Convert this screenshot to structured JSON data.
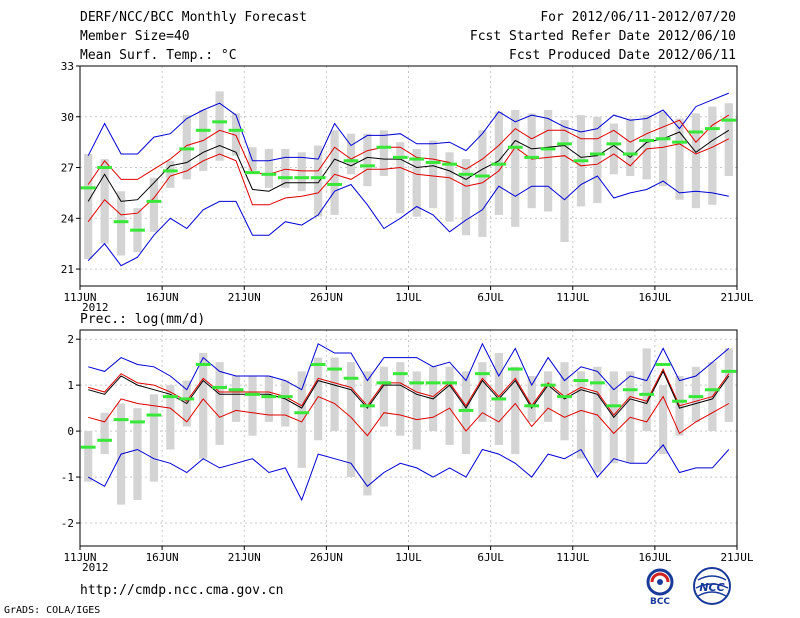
{
  "header": {
    "left": [
      "DERF/NCC/BCC Monthly Forecast",
      "Member Size=40",
      "Mean Surf. Temp.: °C"
    ],
    "right": [
      "For 2012/06/11-2012/07/20",
      "Fcst Started Refer Date 2012/06/10",
      "Fcst Produced Date 2012/06/11"
    ]
  },
  "footer": {
    "url": "http://cmdp.ncc.cma.gov.cn",
    "credit": "GrADS: COLA/IGES"
  },
  "logos": {
    "bcc": "BCC",
    "ncc": "NCC"
  },
  "colors": {
    "band": "#d4d4d4",
    "median": "#38e838",
    "mean": "#000000",
    "inner": "#e00000",
    "outer": "#0000d8",
    "grid": "#c8c8c8"
  },
  "chart_data": [
    {
      "type": "box-spread",
      "title": "Mean Surf. Temp.",
      "ylabel": "Mean Surf. Temp.: °C",
      "year_label": "2012",
      "ylim": [
        20,
        33
      ],
      "yticks": [
        21,
        24,
        27,
        30,
        33
      ],
      "x_days": 40,
      "xticks": [
        {
          "day": 0,
          "label": "11JUN"
        },
        {
          "day": 5,
          "label": "16JUN"
        },
        {
          "day": 10,
          "label": "21JUN"
        },
        {
          "day": 15,
          "label": "26JUN"
        },
        {
          "day": 20,
          "label": "1JUL"
        },
        {
          "day": 25,
          "label": "6JUL"
        },
        {
          "day": 30,
          "label": "11JUL"
        },
        {
          "day": 35,
          "label": "16JUL"
        },
        {
          "day": 40,
          "label": "21JUL"
        }
      ],
      "box_low": [
        21.6,
        22.5,
        21.8,
        22.0,
        23.2,
        25.8,
        26.3,
        26.8,
        27.4,
        27.7,
        26.8,
        25.8,
        25.8,
        25.6,
        24.1,
        24.2,
        26.6,
        25.9,
        26.5,
        24.3,
        24.1,
        24.6,
        23.8,
        23.0,
        22.9,
        24.2,
        23.5,
        24.6,
        24.4,
        22.6,
        24.7,
        24.9,
        26.6,
        26.5,
        26.3,
        25.9,
        25.1,
        24.6,
        24.8,
        26.5
      ],
      "box_high": [
        27.8,
        27.5,
        25.6,
        24.6,
        26.4,
        27.4,
        30.1,
        30.4,
        31.5,
        30.2,
        28.2,
        28.1,
        28.1,
        27.9,
        28.3,
        29.2,
        29.0,
        29.0,
        29.2,
        28.5,
        28.1,
        28.6,
        27.9,
        27.5,
        29.2,
        30.3,
        30.4,
        30.2,
        30.4,
        29.8,
        30.1,
        30.0,
        29.6,
        29.9,
        30.1,
        30.3,
        29.9,
        30.2,
        30.6,
        30.8
      ],
      "median": [
        25.8,
        27.0,
        23.8,
        23.3,
        25.0,
        26.8,
        28.1,
        29.2,
        29.7,
        29.2,
        26.7,
        26.6,
        26.4,
        26.4,
        26.4,
        26.0,
        27.4,
        27.1,
        28.2,
        27.6,
        27.5,
        27.3,
        27.2,
        26.6,
        26.5,
        27.2,
        28.2,
        27.6,
        28.1,
        28.4,
        27.4,
        27.8,
        28.4,
        27.8,
        28.6,
        28.7,
        28.5,
        29.1,
        29.3,
        29.8
      ],
      "mean": [
        25.0,
        26.6,
        25.0,
        25.1,
        26.1,
        27.1,
        27.3,
        27.9,
        28.3,
        27.9,
        25.7,
        25.6,
        26.1,
        26.1,
        26.1,
        27.5,
        27.1,
        27.6,
        27.5,
        27.5,
        27.0,
        27.1,
        26.8,
        26.3,
        26.9,
        27.4,
        28.6,
        28.1,
        28.2,
        28.3,
        27.6,
        27.7,
        28.3,
        27.6,
        28.5,
        28.7,
        29.1,
        27.9,
        28.6,
        29.2
      ],
      "upper_red": [
        26.0,
        27.4,
        26.3,
        26.3,
        26.9,
        27.5,
        28.3,
        28.6,
        29.2,
        28.9,
        26.7,
        26.6,
        26.9,
        26.8,
        26.8,
        28.2,
        27.5,
        28.0,
        28.2,
        28.2,
        27.6,
        27.5,
        27.3,
        26.9,
        27.5,
        28.3,
        29.3,
        28.7,
        29.2,
        29.2,
        28.7,
        28.7,
        29.2,
        28.5,
        29.0,
        29.4,
        29.8,
        28.5,
        29.5,
        30.1
      ],
      "lower_red": [
        23.8,
        25.1,
        24.2,
        24.3,
        25.2,
        26.5,
        26.8,
        27.4,
        27.8,
        27.4,
        24.8,
        24.8,
        25.2,
        25.3,
        25.5,
        26.6,
        26.3,
        26.9,
        26.9,
        27.0,
        26.6,
        26.5,
        26.4,
        25.9,
        26.1,
        26.8,
        28.2,
        27.5,
        27.6,
        27.7,
        27.1,
        27.2,
        27.8,
        27.1,
        28.1,
        28.2,
        28.4,
        27.8,
        28.2,
        28.7
      ],
      "upper_blue": [
        27.7,
        29.6,
        27.8,
        27.8,
        28.8,
        29.0,
        29.9,
        30.4,
        30.8,
        30.1,
        27.4,
        27.4,
        27.6,
        27.6,
        27.5,
        29.6,
        28.3,
        28.9,
        28.9,
        29.0,
        28.4,
        28.4,
        28.5,
        28.0,
        29.0,
        30.3,
        29.7,
        30.1,
        29.9,
        29.4,
        29.1,
        29.3,
        30.1,
        29.8,
        29.9,
        30.4,
        29.3,
        30.6,
        31.0,
        31.4
      ],
      "lower_blue": [
        21.5,
        22.5,
        21.2,
        21.7,
        23.0,
        24.0,
        23.4,
        24.5,
        25.0,
        25.0,
        23.0,
        23.0,
        23.8,
        23.6,
        24.2,
        25.6,
        26.0,
        24.8,
        23.4,
        24.0,
        24.7,
        24.2,
        23.2,
        23.9,
        24.5,
        25.9,
        25.3,
        25.9,
        25.9,
        25.1,
        26.0,
        26.5,
        25.2,
        25.5,
        25.7,
        26.2,
        25.5,
        25.6,
        25.5,
        25.3
      ]
    },
    {
      "type": "box-spread",
      "title": "Prec.",
      "ylabel": "Prec.: log(mm/d)",
      "year_label": "2012",
      "ylim": [
        -2.5,
        2.2
      ],
      "yticks": [
        -2,
        -1,
        0,
        1,
        2
      ],
      "x_days": 40,
      "xticks": [
        {
          "day": 0,
          "label": "11JUN"
        },
        {
          "day": 5,
          "label": "16JUN"
        },
        {
          "day": 10,
          "label": "21JUN"
        },
        {
          "day": 15,
          "label": "26JUN"
        },
        {
          "day": 20,
          "label": "1JUL"
        },
        {
          "day": 25,
          "label": "6JUL"
        },
        {
          "day": 30,
          "label": "11JUL"
        },
        {
          "day": 35,
          "label": "16JUL"
        },
        {
          "day": 40,
          "label": "21JUL"
        }
      ],
      "box_low": [
        -1.1,
        -0.5,
        -1.6,
        -1.5,
        -1.1,
        -0.4,
        0.1,
        -0.6,
        -0.3,
        0.2,
        -0.1,
        0.2,
        0.1,
        -0.8,
        -0.2,
        0.0,
        -1.0,
        -1.4,
        0.1,
        -0.1,
        -0.4,
        0.0,
        -0.3,
        -0.5,
        0.2,
        -0.3,
        -0.5,
        0.2,
        0.2,
        -0.2,
        -0.6,
        -0.9,
        -0.7,
        -0.7,
        0.0,
        -0.5,
        -0.1,
        0.2,
        0.0,
        0.2
      ],
      "box_high": [
        0.0,
        0.4,
        0.6,
        0.5,
        0.8,
        1.0,
        1.1,
        1.7,
        1.5,
        1.2,
        1.2,
        1.2,
        1.1,
        1.3,
        1.6,
        1.6,
        1.5,
        1.3,
        1.4,
        1.5,
        1.3,
        1.4,
        1.4,
        1.3,
        1.5,
        1.7,
        1.4,
        1.2,
        1.3,
        1.5,
        1.3,
        1.4,
        1.3,
        1.3,
        1.8,
        1.0,
        1.2,
        1.4,
        1.5,
        1.8
      ],
      "median": [
        -0.35,
        -0.2,
        0.25,
        0.2,
        0.35,
        0.75,
        0.7,
        1.45,
        0.95,
        0.9,
        0.8,
        0.75,
        0.75,
        0.4,
        1.45,
        1.35,
        1.15,
        0.55,
        1.05,
        1.25,
        1.05,
        1.05,
        1.05,
        0.45,
        1.25,
        0.7,
        1.35,
        0.55,
        1.0,
        0.75,
        1.1,
        1.05,
        0.55,
        0.9,
        0.8,
        1.45,
        0.65,
        0.75,
        0.9,
        1.3
      ],
      "mean": [
        0.9,
        0.8,
        1.2,
        1.0,
        0.9,
        0.8,
        0.6,
        1.1,
        0.8,
        0.8,
        0.8,
        0.8,
        0.7,
        0.5,
        1.1,
        1.0,
        0.9,
        0.5,
        1.0,
        1.0,
        0.8,
        0.7,
        1.0,
        0.5,
        1.1,
        0.7,
        1.1,
        0.5,
        1.0,
        0.7,
        0.9,
        0.8,
        0.3,
        0.7,
        0.6,
        1.3,
        0.5,
        0.6,
        0.7,
        1.2
      ],
      "upper_red": [
        0.95,
        0.85,
        1.25,
        1.05,
        1.0,
        0.85,
        0.65,
        1.15,
        0.85,
        0.85,
        0.85,
        0.85,
        0.75,
        0.55,
        1.15,
        1.05,
        0.95,
        0.55,
        1.05,
        1.05,
        0.85,
        0.75,
        1.05,
        0.55,
        1.15,
        0.75,
        1.15,
        0.55,
        1.05,
        0.75,
        0.95,
        0.85,
        0.35,
        0.75,
        0.65,
        1.35,
        0.55,
        0.65,
        0.75,
        1.25
      ],
      "lower_red": [
        0.3,
        0.2,
        0.7,
        0.6,
        0.55,
        0.5,
        0.2,
        0.7,
        0.3,
        0.45,
        0.4,
        0.35,
        0.35,
        0.2,
        0.75,
        0.6,
        0.3,
        -0.1,
        0.4,
        0.35,
        0.25,
        0.3,
        0.5,
        0.0,
        0.4,
        0.2,
        0.6,
        0.1,
        0.5,
        0.3,
        0.45,
        0.35,
        -0.05,
        0.3,
        0.2,
        0.75,
        -0.05,
        0.2,
        0.4,
        0.6
      ],
      "upper_blue": [
        1.4,
        1.3,
        1.6,
        1.45,
        1.4,
        1.2,
        0.9,
        1.6,
        1.3,
        1.2,
        1.2,
        1.2,
        1.1,
        0.9,
        1.9,
        1.7,
        1.7,
        1.1,
        1.6,
        1.6,
        1.6,
        1.4,
        1.5,
        1.1,
        1.9,
        1.2,
        1.8,
        1.0,
        1.6,
        1.1,
        1.4,
        1.3,
        0.9,
        1.2,
        1.1,
        1.8,
        1.1,
        1.2,
        1.5,
        1.8
      ],
      "lower_blue": [
        -1.0,
        -1.2,
        -0.5,
        -0.4,
        -0.6,
        -0.7,
        -0.9,
        -0.6,
        -0.8,
        -0.7,
        -0.6,
        -0.9,
        -0.8,
        -1.5,
        -0.5,
        -0.6,
        -0.7,
        -1.2,
        -0.9,
        -0.7,
        -0.8,
        -1.0,
        -0.8,
        -1.0,
        -0.4,
        -0.5,
        -0.7,
        -1.0,
        -0.5,
        -0.6,
        -0.4,
        -1.0,
        -0.6,
        -0.7,
        -0.7,
        -0.3,
        -0.9,
        -0.8,
        -0.8,
        -0.4
      ]
    }
  ]
}
